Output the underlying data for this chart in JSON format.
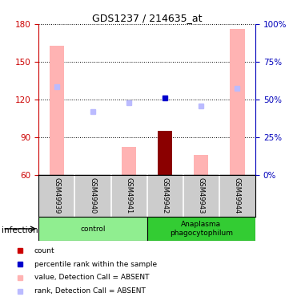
{
  "title": "GDS1237 / 214635_at",
  "samples": [
    "GSM49939",
    "GSM49940",
    "GSM49941",
    "GSM49942",
    "GSM49943",
    "GSM49944"
  ],
  "bar_values": [
    163,
    60,
    82,
    95,
    76,
    176
  ],
  "bar_colors": [
    "#ffb3b3",
    "#ffb3b3",
    "#ffb3b3",
    "#8b0000",
    "#ffb3b3",
    "#ffb3b3"
  ],
  "rank_dots": [
    130,
    110,
    117,
    121,
    115,
    129
  ],
  "rank_dot_colors": [
    "#bbbbff",
    "#bbbbff",
    "#bbbbff",
    "#0000cc",
    "#bbbbff",
    "#bbbbff"
  ],
  "ylim": [
    60,
    180
  ],
  "y2lim": [
    0,
    100
  ],
  "yticks": [
    60,
    90,
    120,
    150,
    180
  ],
  "y2ticks": [
    0,
    25,
    50,
    75,
    100
  ],
  "y2ticklabels": [
    "0%",
    "25%",
    "50%",
    "75%",
    "100%"
  ],
  "groups": [
    {
      "label": "control",
      "start": 0,
      "end": 3,
      "color": "#90ee90"
    },
    {
      "label": "Anaplasma\nphagocytophilum",
      "start": 3,
      "end": 6,
      "color": "#33cc33"
    }
  ],
  "infection_label": "infection",
  "legend_items": [
    {
      "label": "count",
      "color": "#cc0000"
    },
    {
      "label": "percentile rank within the sample",
      "color": "#0000cc"
    },
    {
      "label": "value, Detection Call = ABSENT",
      "color": "#ffb3b3"
    },
    {
      "label": "rank, Detection Call = ABSENT",
      "color": "#bbbbff"
    }
  ],
  "left_axis_color": "#cc0000",
  "right_axis_color": "#0000bb",
  "bg_color": "#ffffff",
  "sample_box_color": "#cccccc",
  "bar_bottom": 60
}
